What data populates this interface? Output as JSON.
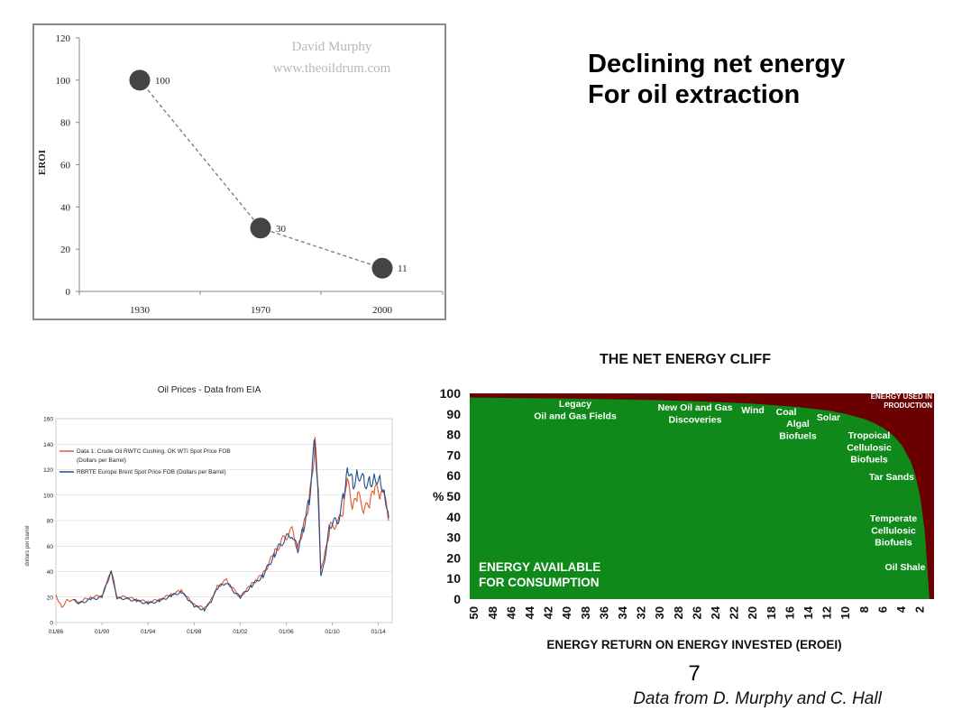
{
  "slide": {
    "title_lines": [
      "Declining net energy",
      "For oil extraction"
    ],
    "page_number": "7",
    "credit": "Data from D. Murphy and C. Hall"
  },
  "chart_data": [
    {
      "type": "line",
      "title": "",
      "watermark": [
        "David Murphy",
        "www.theoildrum.com"
      ],
      "xlabel": "",
      "ylabel": "EROI",
      "categories": [
        "1930",
        "1970",
        "2000"
      ],
      "series": [
        {
          "values": [
            100,
            30,
            11
          ]
        }
      ],
      "data_labels": [
        "100",
        "30",
        "11"
      ],
      "y_ticks": [
        "0",
        "20",
        "40",
        "60",
        "80",
        "100",
        "120"
      ],
      "ylim": [
        0,
        120
      ],
      "marker": "large dark circles, dashed connecting line",
      "color": "#444444",
      "grid": false
    },
    {
      "type": "line",
      "title": "Oil Prices - Data from EIA",
      "xlabel": "",
      "ylabel": "dollars per barrel",
      "ylim": [
        0,
        160
      ],
      "y_ticks": [
        "0",
        "20",
        "40",
        "60",
        "80",
        "100",
        "120",
        "140",
        "160"
      ],
      "x_ticks": [
        "01/86",
        "01/90",
        "01/94",
        "01/98",
        "01/02",
        "01/06",
        "01/10",
        "01/14"
      ],
      "legend": [
        {
          "name": "Data 1: Crude Oil RWTC Cushing, OK WTI Spot Price FOB",
          "name2": "(Dollars per Barrel)",
          "color": "#e8542a"
        },
        {
          "name": "RBRTE Europe Brent Spot Price FOB (Dollars per Barrel)",
          "name2": "",
          "color": "#1f4e8c"
        }
      ],
      "legend_position": "top-left",
      "grid": true,
      "series": [
        {
          "name": "Data 1: Crude Oil RWTC Cushing, OK WTI Spot Price FOB (Dollars per Barrel)",
          "color": "#e8542a",
          "x": [
            1986.0,
            1986.5,
            1987.0,
            1988.0,
            1989.0,
            1990.0,
            1990.8,
            1991.3,
            1992.0,
            1993.0,
            1994.0,
            1995.0,
            1996.0,
            1996.9,
            1997.5,
            1998.0,
            1998.9,
            1999.5,
            2000.0,
            2000.8,
            2001.5,
            2002.0,
            2003.0,
            2004.0,
            2005.0,
            2005.7,
            2006.5,
            2007.0,
            2007.5,
            2008.0,
            2008.5,
            2008.8,
            2009.0,
            2009.3,
            2009.8,
            2010.5,
            2011.0,
            2011.3,
            2011.8,
            2012.2,
            2012.8,
            2013.3,
            2013.7,
            2014.2,
            2014.5,
            2014.9
          ],
          "y": [
            22,
            12,
            18,
            16,
            20,
            21,
            40,
            20,
            20,
            18,
            16,
            18,
            22,
            25,
            19,
            14,
            11,
            18,
            28,
            33,
            25,
            20,
            30,
            38,
            55,
            65,
            72,
            58,
            75,
            95,
            140,
            100,
            40,
            50,
            75,
            78,
            90,
            110,
            90,
            100,
            88,
            95,
            105,
            100,
            100,
            80
          ]
        },
        {
          "name": "RBRTE Europe Brent Spot Price FOB (Dollars per Barrel)",
          "color": "#1f4e8c",
          "x": [
            1987.5,
            1988.0,
            1989.0,
            1990.0,
            1990.8,
            1991.3,
            1992.0,
            1993.0,
            1994.0,
            1995.0,
            1996.0,
            1996.9,
            1997.5,
            1998.0,
            1998.9,
            1999.5,
            2000.0,
            2000.8,
            2001.5,
            2002.0,
            2003.0,
            2004.0,
            2005.0,
            2005.7,
            2006.5,
            2007.0,
            2007.5,
            2008.0,
            2008.5,
            2008.8,
            2009.0,
            2009.3,
            2009.8,
            2010.5,
            2011.0,
            2011.3,
            2011.8,
            2012.2,
            2012.8,
            2013.3,
            2013.7,
            2014.2,
            2014.5,
            2014.9
          ],
          "y": [
            18,
            15,
            18,
            20,
            41,
            19,
            19,
            17,
            15,
            17,
            21,
            24,
            18,
            13,
            10,
            17,
            27,
            32,
            24,
            20,
            29,
            37,
            54,
            64,
            70,
            57,
            74,
            96,
            145,
            96,
            38,
            48,
            77,
            80,
            100,
            125,
            108,
            118,
            110,
            110,
            115,
            110,
            105,
            82
          ]
        }
      ]
    },
    {
      "type": "area",
      "title": "THE NET ENERGY CLIFF",
      "xlabel": "ENERGY RETURN ON ENERGY INVESTED (EROEI)",
      "ylabel": "%",
      "ylim": [
        0,
        100
      ],
      "x_reversed": true,
      "x_ticks": [
        "50",
        "48",
        "46",
        "44",
        "42",
        "40",
        "38",
        "36",
        "34",
        "32",
        "30",
        "28",
        "26",
        "24",
        "22",
        "20",
        "18",
        "16",
        "14",
        "12",
        "10",
        "8",
        "6",
        "4",
        "2"
      ],
      "y_ticks": [
        "0",
        "10",
        "20",
        "30",
        "40",
        "50",
        "60",
        "70",
        "80",
        "90",
        "100"
      ],
      "series": [
        {
          "name": "ENERGY AVAILABLE FOR CONSUMPTION",
          "color": "#0f8a1a",
          "x": [
            50,
            40,
            30,
            25,
            20,
            15,
            12,
            10,
            8,
            7,
            6,
            5,
            4,
            3,
            2.5,
            2,
            1.5,
            1
          ],
          "y": [
            98,
            97.5,
            96.7,
            96,
            95,
            93.3,
            91.7,
            90,
            87.5,
            85.7,
            83.3,
            80,
            75,
            66.7,
            60,
            50,
            33.3,
            0
          ]
        },
        {
          "name": "ENERGY USED IN PRODUCTION",
          "color": "#6a0000"
        }
      ],
      "annotations": [
        {
          "lines": [
            "Legacy",
            "Oil and Gas Fields"
          ]
        },
        {
          "lines": [
            "New Oil and Gas",
            "Discoveries"
          ]
        },
        {
          "lines": [
            "Wind"
          ]
        },
        {
          "lines": [
            "Coal"
          ]
        },
        {
          "lines": [
            "Algal",
            "Biofuels"
          ]
        },
        {
          "lines": [
            "Solar"
          ]
        },
        {
          "lines": [
            "Tropoical",
            "Cellulosic",
            "Biofuels"
          ]
        },
        {
          "lines": [
            "Tar Sands"
          ]
        },
        {
          "lines": [
            "Temperate",
            "Cellulosic",
            "Biofuels"
          ]
        },
        {
          "lines": [
            "Oil Shale"
          ]
        },
        {
          "lines": [
            "ENERGY AVAILABLE",
            "FOR CONSUMPTION"
          ]
        },
        {
          "lines": [
            "ENERGY USED IN",
            "PRODUCTION"
          ]
        }
      ]
    }
  ]
}
